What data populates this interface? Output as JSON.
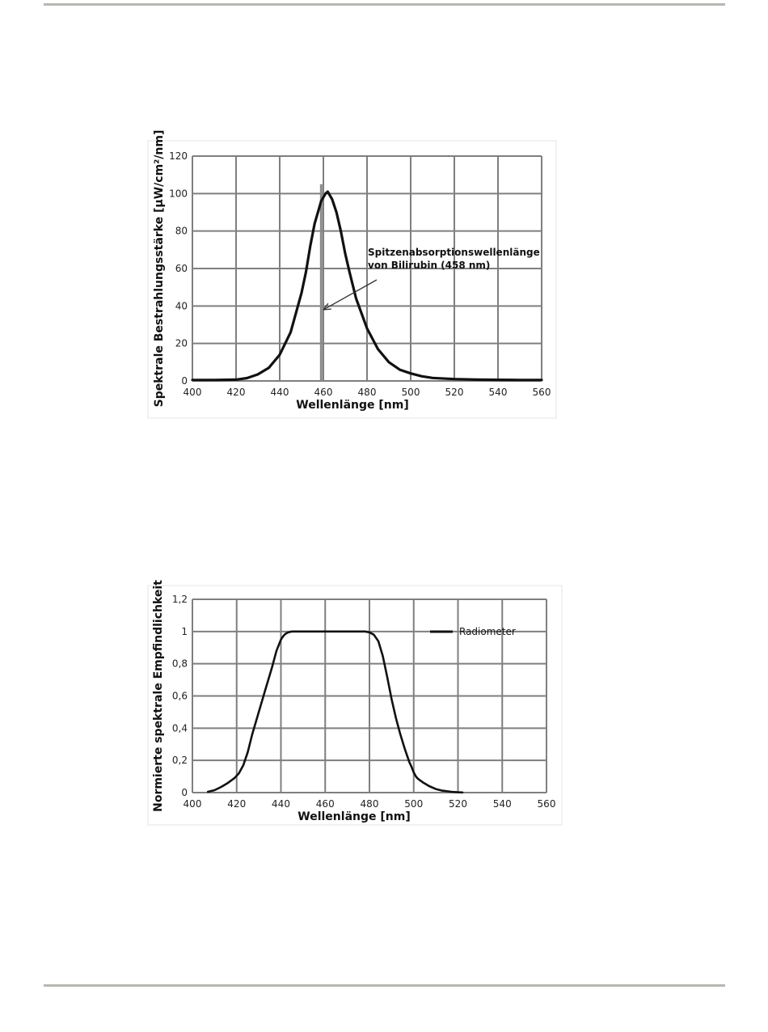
{
  "chart_data": [
    {
      "type": "line",
      "xlabel": "Wellenlänge [nm]",
      "ylabel": "Spektrale Bestrahlungsstärke [µW/cm²/nm]",
      "xlim": [
        400,
        560
      ],
      "ylim": [
        0,
        120
      ],
      "xticks": [
        400,
        420,
        440,
        460,
        480,
        500,
        520,
        540,
        560
      ],
      "yticks": [
        0,
        20,
        40,
        60,
        80,
        100,
        120
      ],
      "grid": true,
      "series": [
        {
          "x": [
            400,
            410,
            420,
            425,
            430,
            435,
            440,
            445,
            450,
            452,
            454,
            456,
            458,
            459,
            460,
            461,
            462,
            463,
            464,
            466,
            468,
            470,
            472,
            475,
            480,
            485,
            490,
            495,
            500,
            505,
            510,
            520,
            530,
            540,
            550,
            560
          ],
          "values": [
            0.5,
            0.5,
            0.7,
            1.5,
            3.5,
            7,
            14,
            26,
            47,
            58,
            72,
            84,
            92,
            96,
            98,
            100,
            101,
            99,
            97,
            90,
            80,
            68,
            58,
            44,
            28,
            17,
            10,
            6,
            4,
            2.5,
            1.6,
            1,
            0.7,
            0.6,
            0.5,
            0.5
          ]
        }
      ],
      "reference_line": {
        "x": 459,
        "ymax": 105
      },
      "annotation": {
        "lines": [
          "Spitzenabsorptionswellenlänge",
          "von Bilirubin (458 nm)"
        ],
        "arrow_to": {
          "x": 460,
          "y": 38
        }
      }
    },
    {
      "type": "line",
      "xlabel": "Wellenlänge [nm]",
      "ylabel": "Normierte spektrale Empfindlichkeit",
      "xlim": [
        400,
        560
      ],
      "ylim": [
        0,
        1.2
      ],
      "xticks": [
        400,
        420,
        440,
        460,
        480,
        500,
        520,
        540,
        560
      ],
      "yticks": [
        "0",
        "0,2",
        "0,4",
        "0,6",
        "0,8",
        "1",
        "1,2"
      ],
      "grid": true,
      "legend": "top-right",
      "series": [
        {
          "name": "Radiometer",
          "x": [
            407,
            410,
            413,
            416,
            419,
            421,
            423,
            425,
            427,
            430,
            433,
            436,
            438,
            440,
            441,
            442,
            443,
            444,
            445,
            450,
            460,
            470,
            475,
            478,
            480,
            482,
            484,
            486,
            488,
            490,
            492,
            494,
            496,
            498,
            499,
            500,
            501,
            502,
            504,
            507,
            510,
            513,
            517,
            520,
            522
          ],
          "values": [
            0.005,
            0.015,
            0.035,
            0.06,
            0.09,
            0.12,
            0.17,
            0.25,
            0.36,
            0.5,
            0.64,
            0.78,
            0.88,
            0.95,
            0.97,
            0.985,
            0.993,
            0.997,
            1.0,
            1.0,
            1.0,
            1.0,
            1.0,
            1.0,
            0.995,
            0.98,
            0.94,
            0.85,
            0.72,
            0.58,
            0.46,
            0.36,
            0.27,
            0.19,
            0.16,
            0.125,
            0.1,
            0.085,
            0.065,
            0.04,
            0.022,
            0.012,
            0.005,
            0.002,
            0.001
          ]
        }
      ]
    }
  ]
}
